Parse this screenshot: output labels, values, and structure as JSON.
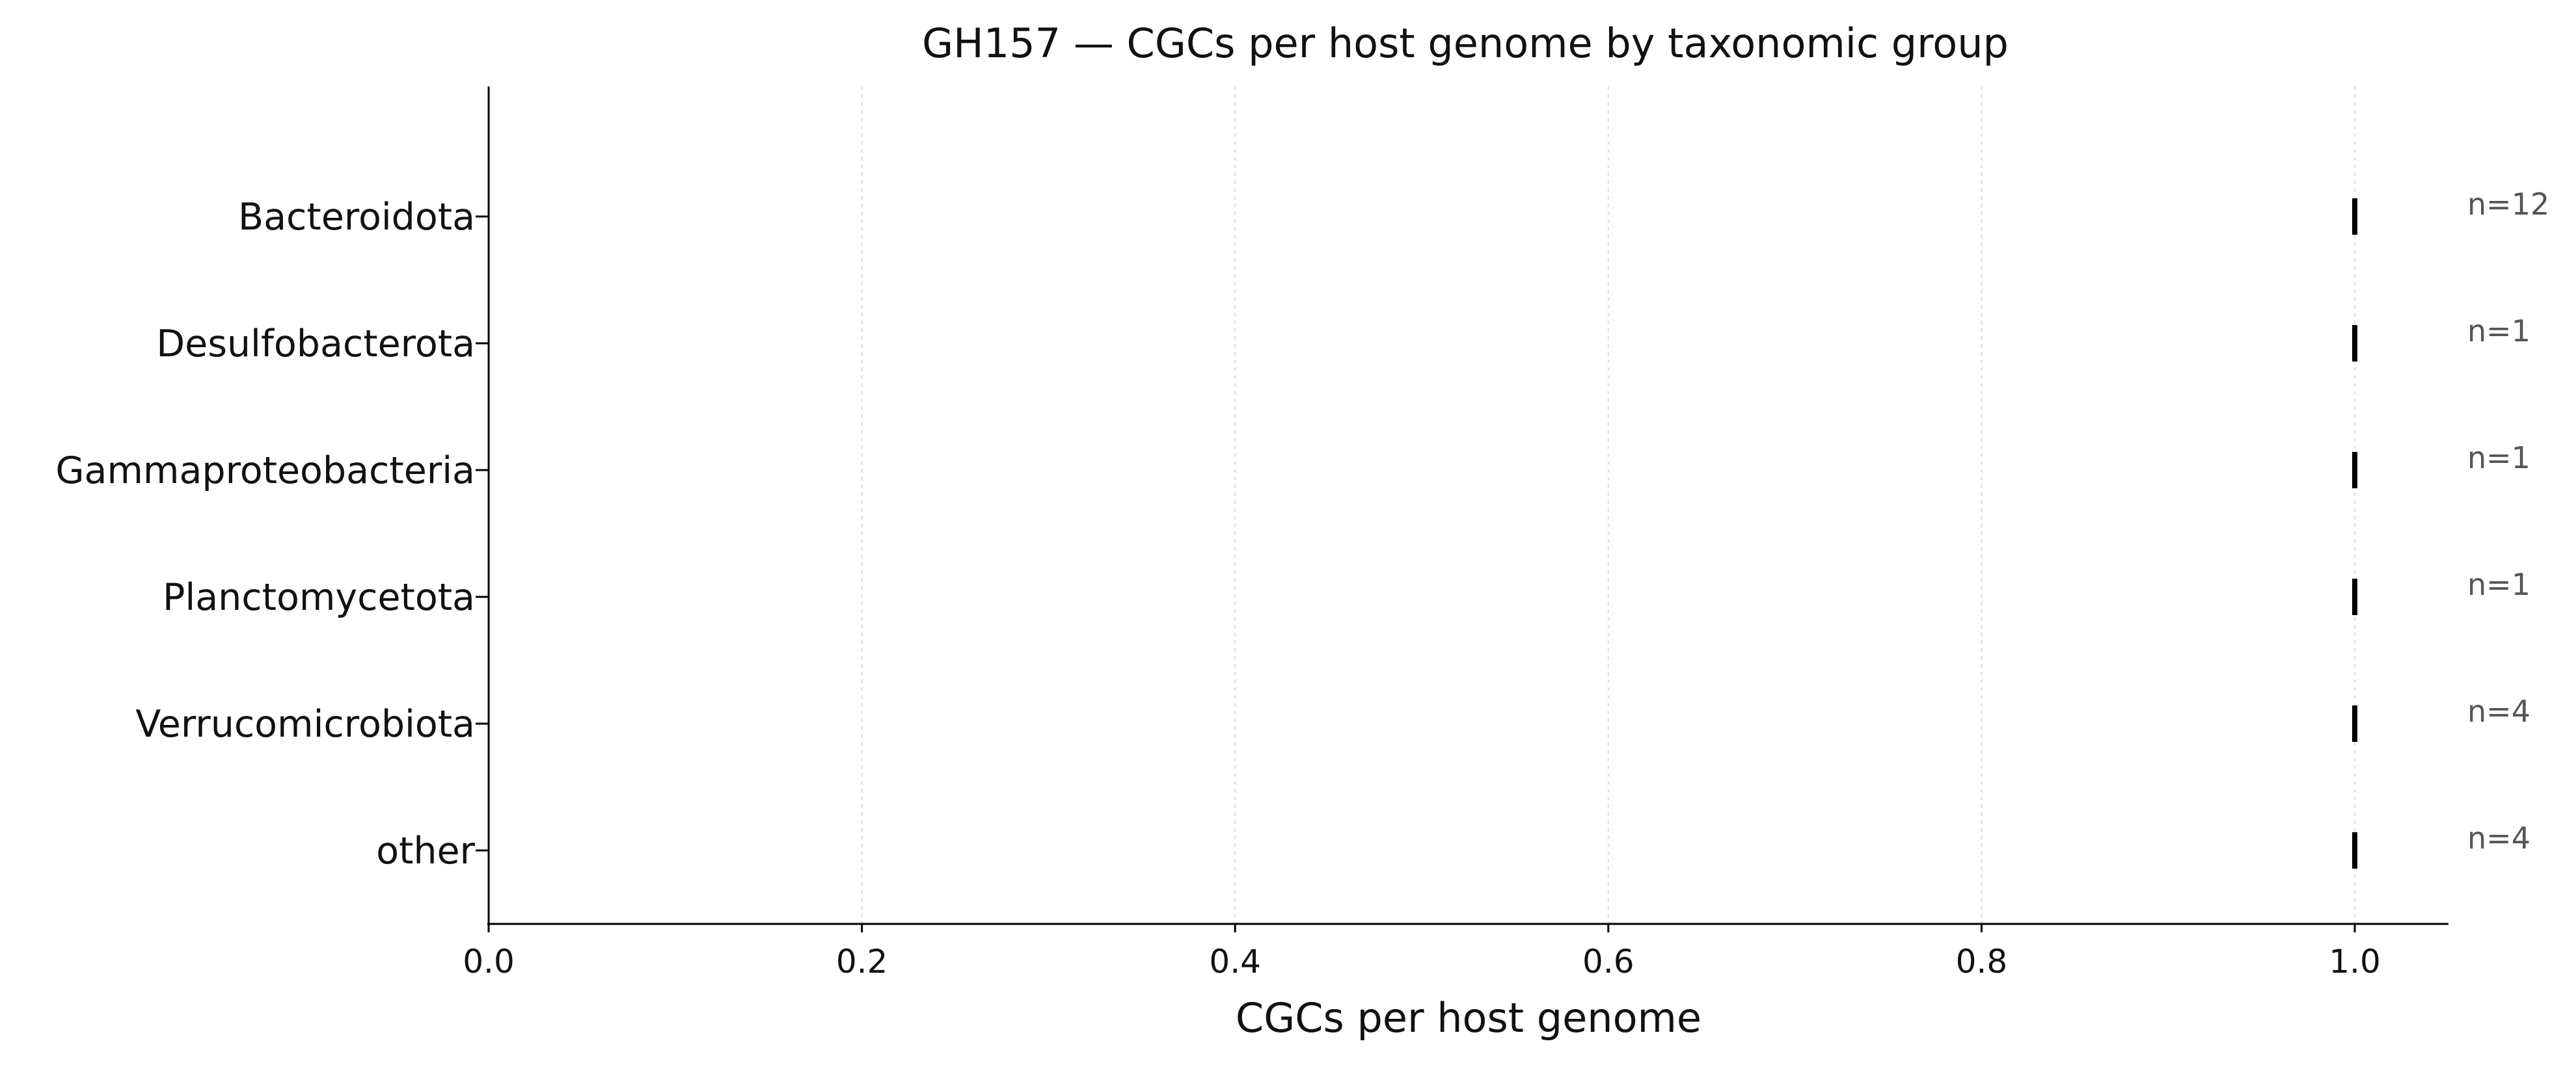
{
  "chart_data": {
    "type": "scatter",
    "title": "GH157 — CGCs per host genome by taxonomic group",
    "xlabel": "CGCs per host genome",
    "ylabel": "",
    "xlim": [
      0,
      1.05
    ],
    "xticks": [
      0.0,
      0.2,
      0.4,
      0.6,
      0.8,
      1.0
    ],
    "xtick_labels": [
      "0.0",
      "0.2",
      "0.4",
      "0.6",
      "0.8",
      "1.0"
    ],
    "grid": "vertical dashed",
    "marker": "vertical tick",
    "categories": [
      "Bacteroidota",
      "Desulfobacterota",
      "Gammaproteobacteria",
      "Planctomycetota",
      "Verrucomicrobiota",
      "other"
    ],
    "values": [
      1.0,
      1.0,
      1.0,
      1.0,
      1.0,
      1.0
    ],
    "counts": [
      "n=12",
      "n=1",
      "n=1",
      "n=1",
      "n=4",
      "n=4"
    ],
    "colors": {
      "marker": "#000000",
      "axis": "#000000",
      "grid": "#dddddd",
      "count_text": "#555555"
    }
  }
}
